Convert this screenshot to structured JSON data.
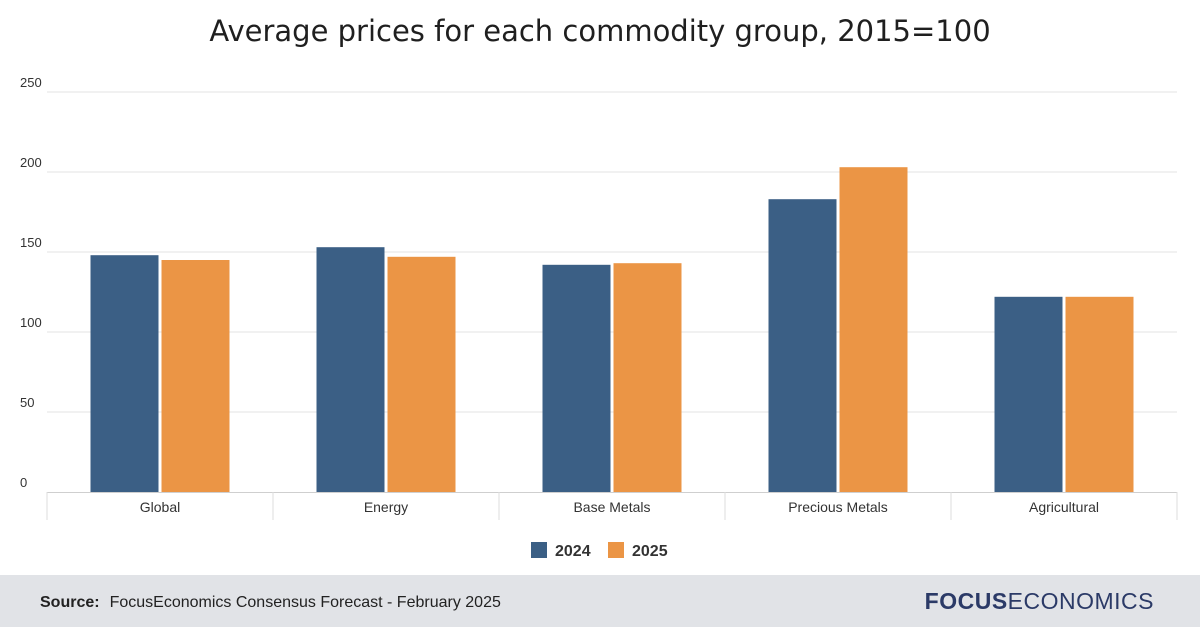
{
  "chart_data": {
    "type": "bar",
    "title": "Average prices for each commodity group, 2015=100",
    "categories": [
      "Global",
      "Energy",
      "Base Metals",
      "Precious Metals",
      "Agricultural"
    ],
    "series": [
      {
        "name": "2024",
        "color": "#3b5f85",
        "values": [
          148,
          153,
          142,
          183,
          122
        ]
      },
      {
        "name": "2025",
        "color": "#eb9545",
        "values": [
          145,
          147,
          143,
          203,
          122
        ]
      }
    ],
    "ylim": [
      0,
      250
    ],
    "yticks": [
      "0",
      "50",
      "100",
      "150",
      "200",
      "250"
    ],
    "ytick_values": [
      0,
      50,
      100,
      150,
      200,
      250
    ],
    "xlabel": "",
    "ylabel": "",
    "legend_position": "bottom-center",
    "grid": true
  },
  "footer": {
    "source_label": "Source:",
    "source_text": "FocusEconomics Consensus Forecast - February 2025",
    "logo_strong": "FOCUS",
    "logo_light": "ECONOMICS"
  }
}
